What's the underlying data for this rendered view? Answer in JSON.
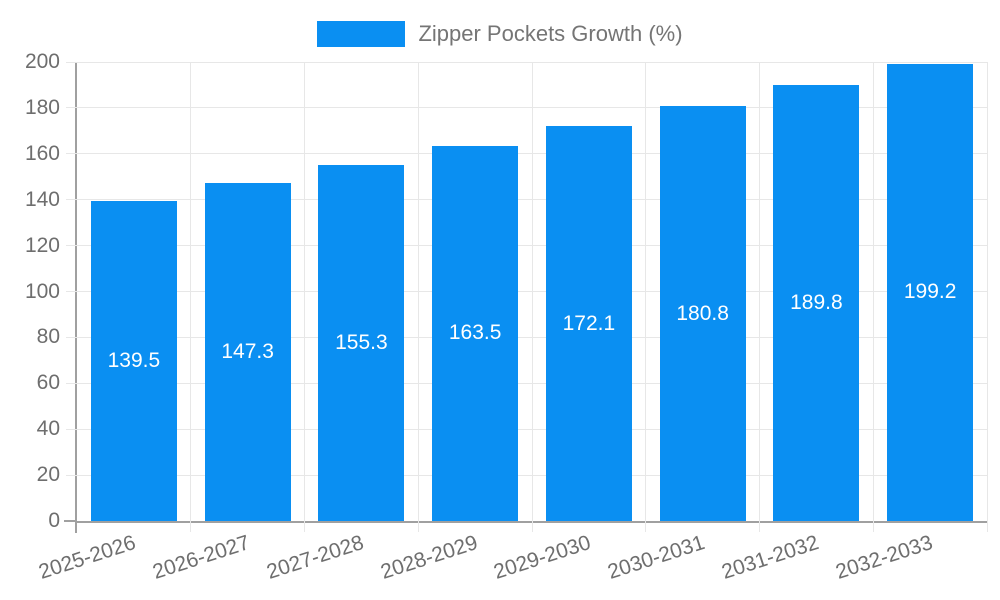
{
  "chart_data": {
    "type": "bar",
    "title": "",
    "legend": "Zipper Pockets Growth (%)",
    "legend_position": "top",
    "categories": [
      "2025-2026",
      "2026-2027",
      "2027-2028",
      "2028-2029",
      "2029-2030",
      "2030-2031",
      "2031-2032",
      "2032-2033"
    ],
    "values": [
      139.5,
      147.3,
      155.3,
      163.5,
      172.1,
      180.8,
      189.8,
      199.2
    ],
    "value_labels": [
      "139.5",
      "147.3",
      "155.3",
      "163.5",
      "172.1",
      "180.8",
      "189.8",
      "199.2"
    ],
    "xlabel": "",
    "ylabel": "",
    "ylim": [
      0,
      200
    ],
    "yticks": [
      0,
      20,
      40,
      60,
      80,
      100,
      120,
      140,
      160,
      180,
      200
    ],
    "grid": true,
    "x_label_rotation_deg": -18,
    "colors": {
      "bar": "#0a8ff2",
      "value_label": "#ffffff",
      "axis": "#a0a0a0",
      "grid": "#e7e7e7",
      "tick_label": "#6e6e6e",
      "legend_text": "#757575",
      "background": "#ffffff"
    }
  }
}
